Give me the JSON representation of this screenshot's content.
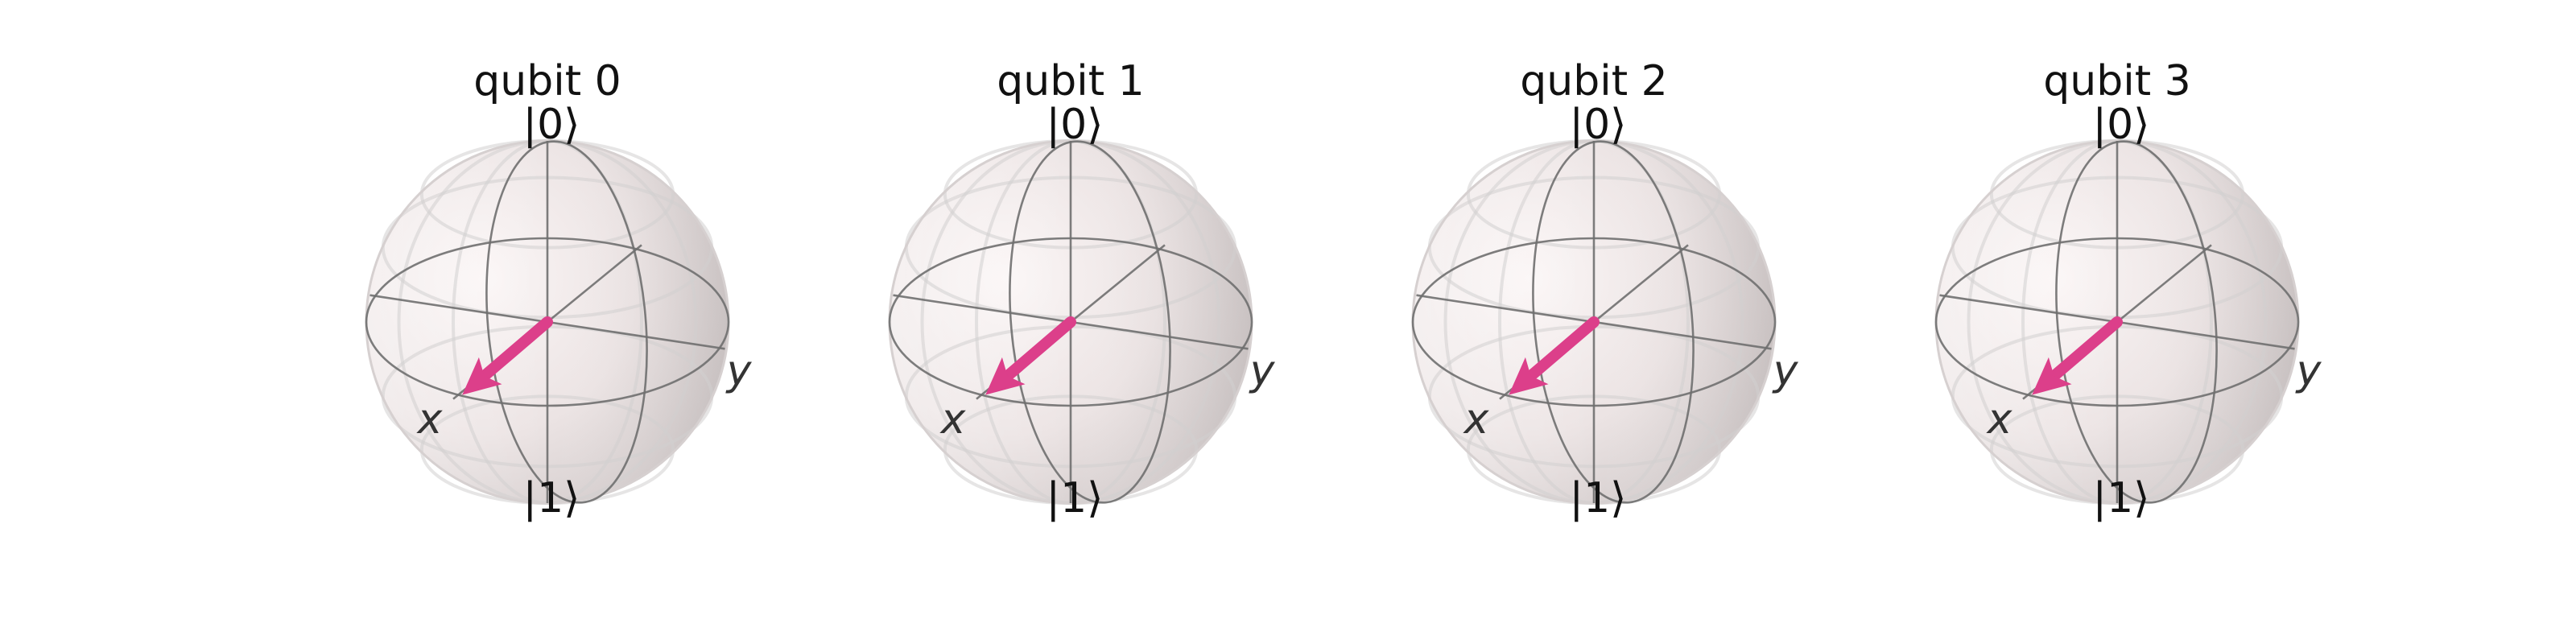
{
  "figure": {
    "type": "bloch_multivector",
    "vector_color": "#dc3f8a",
    "sphere_color": "#e9dede"
  },
  "axis_labels": {
    "x": "x",
    "y": "y",
    "top": "|0⟩",
    "bottom": "|1⟩"
  },
  "qubits": [
    {
      "title": "qubit 0",
      "state": "|+⟩",
      "bloch_vector": [
        1,
        0,
        0
      ]
    },
    {
      "title": "qubit 1",
      "state": "|+⟩",
      "bloch_vector": [
        1,
        0,
        0
      ]
    },
    {
      "title": "qubit 2",
      "state": "|+⟩",
      "bloch_vector": [
        1,
        0,
        0
      ]
    },
    {
      "title": "qubit 3",
      "state": "|+⟩",
      "bloch_vector": [
        1,
        0,
        0
      ]
    }
  ]
}
